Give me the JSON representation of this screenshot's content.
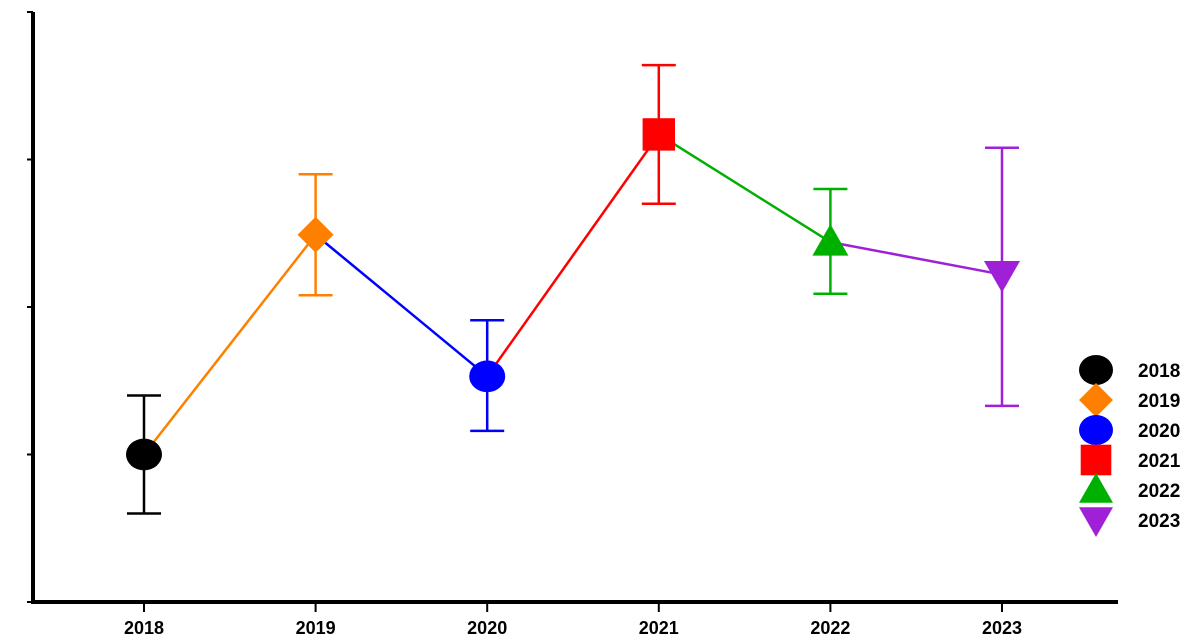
{
  "chart_data": {
    "type": "scatter",
    "title": "",
    "xlabel": "",
    "ylabel": "",
    "categories": [
      "2018",
      "2019",
      "2020",
      "2021",
      "2022",
      "2023"
    ],
    "ylim": [
      0,
      4
    ],
    "grid": false,
    "legend_position": "right",
    "points": [
      {
        "x": "2018",
        "y": 1.0,
        "err_low": 0.6,
        "err_high": 1.4,
        "color": "#000000",
        "marker": "circle"
      },
      {
        "x": "2019",
        "y": 2.49,
        "err_low": 2.08,
        "err_high": 2.9,
        "color": "#ff8000",
        "marker": "diamond"
      },
      {
        "x": "2020",
        "y": 1.53,
        "err_low": 1.16,
        "err_high": 1.91,
        "color": "#0000ff",
        "marker": "circle"
      },
      {
        "x": "2021",
        "y": 3.17,
        "err_low": 2.7,
        "err_high": 3.64,
        "color": "#ff0000",
        "marker": "square"
      },
      {
        "x": "2022",
        "y": 2.44,
        "err_low": 2.09,
        "err_high": 2.8,
        "color": "#00b000",
        "marker": "triangle-up"
      },
      {
        "x": "2023",
        "y": 2.22,
        "err_low": 1.33,
        "err_high": 3.08,
        "color": "#a020d8",
        "marker": "triangle-down"
      }
    ],
    "legend": [
      {
        "label": "2018",
        "color": "#000000",
        "marker": "circle"
      },
      {
        "label": "2019",
        "color": "#ff8000",
        "marker": "diamond"
      },
      {
        "label": "2020",
        "color": "#0000ff",
        "marker": "circle"
      },
      {
        "label": "2021",
        "color": "#ff0000",
        "marker": "square"
      },
      {
        "label": "2022",
        "color": "#00b000",
        "marker": "triangle-up"
      },
      {
        "label": "2023",
        "color": "#a020d8",
        "marker": "triangle-down"
      }
    ]
  }
}
